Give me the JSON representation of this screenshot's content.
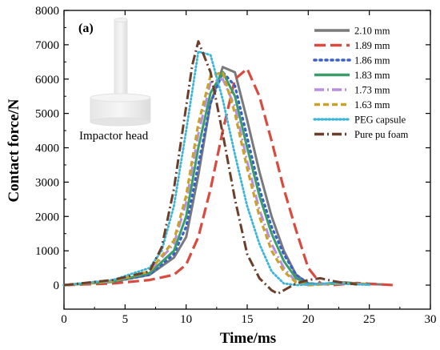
{
  "chart_data": {
    "type": "line",
    "panel_label": "(a)",
    "xlabel": "Time/ms",
    "ylabel": "Contact force/N",
    "xlim": [
      0,
      30
    ],
    "ylim": [
      -300,
      8000
    ],
    "xticks": [
      0,
      5,
      10,
      15,
      20,
      25,
      30
    ],
    "yticks": [
      0,
      1000,
      2000,
      3000,
      4000,
      5000,
      6000,
      7000,
      8000
    ],
    "legend_position": "top-right",
    "inset_label": "Impactor head",
    "series": [
      {
        "name": "2.10 mm",
        "color": "#7a7a7a",
        "dash": "solid",
        "x": [
          0,
          4,
          7,
          9,
          10,
          11,
          12,
          13,
          14,
          15,
          16,
          17,
          18,
          19,
          20,
          21,
          22,
          23,
          24,
          25,
          26
        ],
        "y": [
          0,
          100,
          300,
          800,
          1400,
          3200,
          5300,
          6350,
          6200,
          4800,
          3300,
          2000,
          1000,
          300,
          50,
          30,
          60,
          80,
          50,
          30,
          20
        ]
      },
      {
        "name": "1.89 mm",
        "color": "#d94a3f",
        "dash": "long-dash",
        "x": [
          0,
          4,
          7,
          9,
          10,
          11,
          12,
          13,
          14,
          15,
          16,
          17,
          18,
          19,
          20,
          21,
          22,
          23,
          24,
          25,
          26,
          27
        ],
        "y": [
          0,
          50,
          150,
          300,
          600,
          1400,
          2800,
          4500,
          6000,
          6300,
          5500,
          4200,
          2800,
          1600,
          500,
          50,
          0,
          30,
          60,
          40,
          20,
          0
        ]
      },
      {
        "name": "1.86 mm",
        "color": "#3a5fcd",
        "dash": "dot",
        "x": [
          0,
          4,
          7,
          9,
          10,
          11,
          12,
          13,
          14,
          15,
          16,
          17,
          18,
          19,
          20,
          21,
          22,
          23,
          24,
          25
        ],
        "y": [
          0,
          100,
          300,
          900,
          1700,
          3500,
          5300,
          6200,
          5800,
          4300,
          2800,
          1700,
          900,
          300,
          50,
          20,
          40,
          60,
          40,
          20
        ]
      },
      {
        "name": "1.83 mm",
        "color": "#3b9e6a",
        "dash": "solid",
        "x": [
          0,
          4,
          7,
          9,
          10,
          11,
          12,
          13,
          14,
          15,
          16,
          17,
          18,
          19,
          20,
          21,
          22,
          23,
          24,
          25
        ],
        "y": [
          0,
          100,
          350,
          1000,
          2000,
          4000,
          5600,
          6200,
          5500,
          4000,
          2600,
          1500,
          700,
          200,
          30,
          20,
          40,
          60,
          40,
          20
        ]
      },
      {
        "name": "1.73 mm",
        "color": "#b88ee0",
        "dash": "dash-dot",
        "x": [
          0,
          4,
          7,
          9,
          10,
          11,
          12,
          13,
          14,
          15,
          16,
          17,
          18,
          19,
          20,
          21,
          22,
          23,
          24,
          25
        ],
        "y": [
          0,
          120,
          400,
          1200,
          2400,
          4400,
          5900,
          6000,
          5200,
          3600,
          2200,
          1200,
          500,
          100,
          0,
          20,
          40,
          50,
          30,
          20
        ]
      },
      {
        "name": "1.63 mm",
        "color": "#c9a227",
        "dash": "short-dash",
        "x": [
          0,
          4,
          7,
          9,
          10,
          11,
          12,
          13,
          14,
          15,
          16,
          17,
          18,
          19,
          20,
          21,
          22,
          23,
          24,
          25
        ],
        "y": [
          0,
          120,
          400,
          1300,
          2600,
          4700,
          6100,
          6200,
          5000,
          3400,
          2000,
          1000,
          400,
          80,
          0,
          20,
          40,
          50,
          30,
          20
        ]
      },
      {
        "name": "PEG capsule",
        "color": "#3cb6d8",
        "dash": "fine-dot",
        "x": [
          0,
          4,
          7,
          8,
          9,
          10,
          11,
          12,
          13,
          14,
          15,
          16,
          17,
          18,
          19,
          20,
          21,
          22,
          23,
          24,
          25
        ],
        "y": [
          0,
          150,
          500,
          1000,
          2300,
          4500,
          6800,
          6700,
          5400,
          3800,
          2300,
          1200,
          400,
          50,
          0,
          20,
          40,
          60,
          40,
          20,
          10
        ]
      },
      {
        "name": "Pure pu foam",
        "color": "#6b3f2a",
        "dash": "dash-dot",
        "x": [
          0,
          4,
          7,
          8,
          9,
          10,
          10.5,
          11,
          12,
          13,
          14,
          15,
          16,
          17,
          17.5,
          18,
          19,
          20,
          21,
          22,
          23,
          24
        ],
        "y": [
          0,
          150,
          400,
          1100,
          2800,
          5200,
          6400,
          7100,
          6200,
          4400,
          2500,
          900,
          200,
          -150,
          -250,
          -150,
          50,
          150,
          200,
          120,
          60,
          20
        ]
      }
    ]
  }
}
